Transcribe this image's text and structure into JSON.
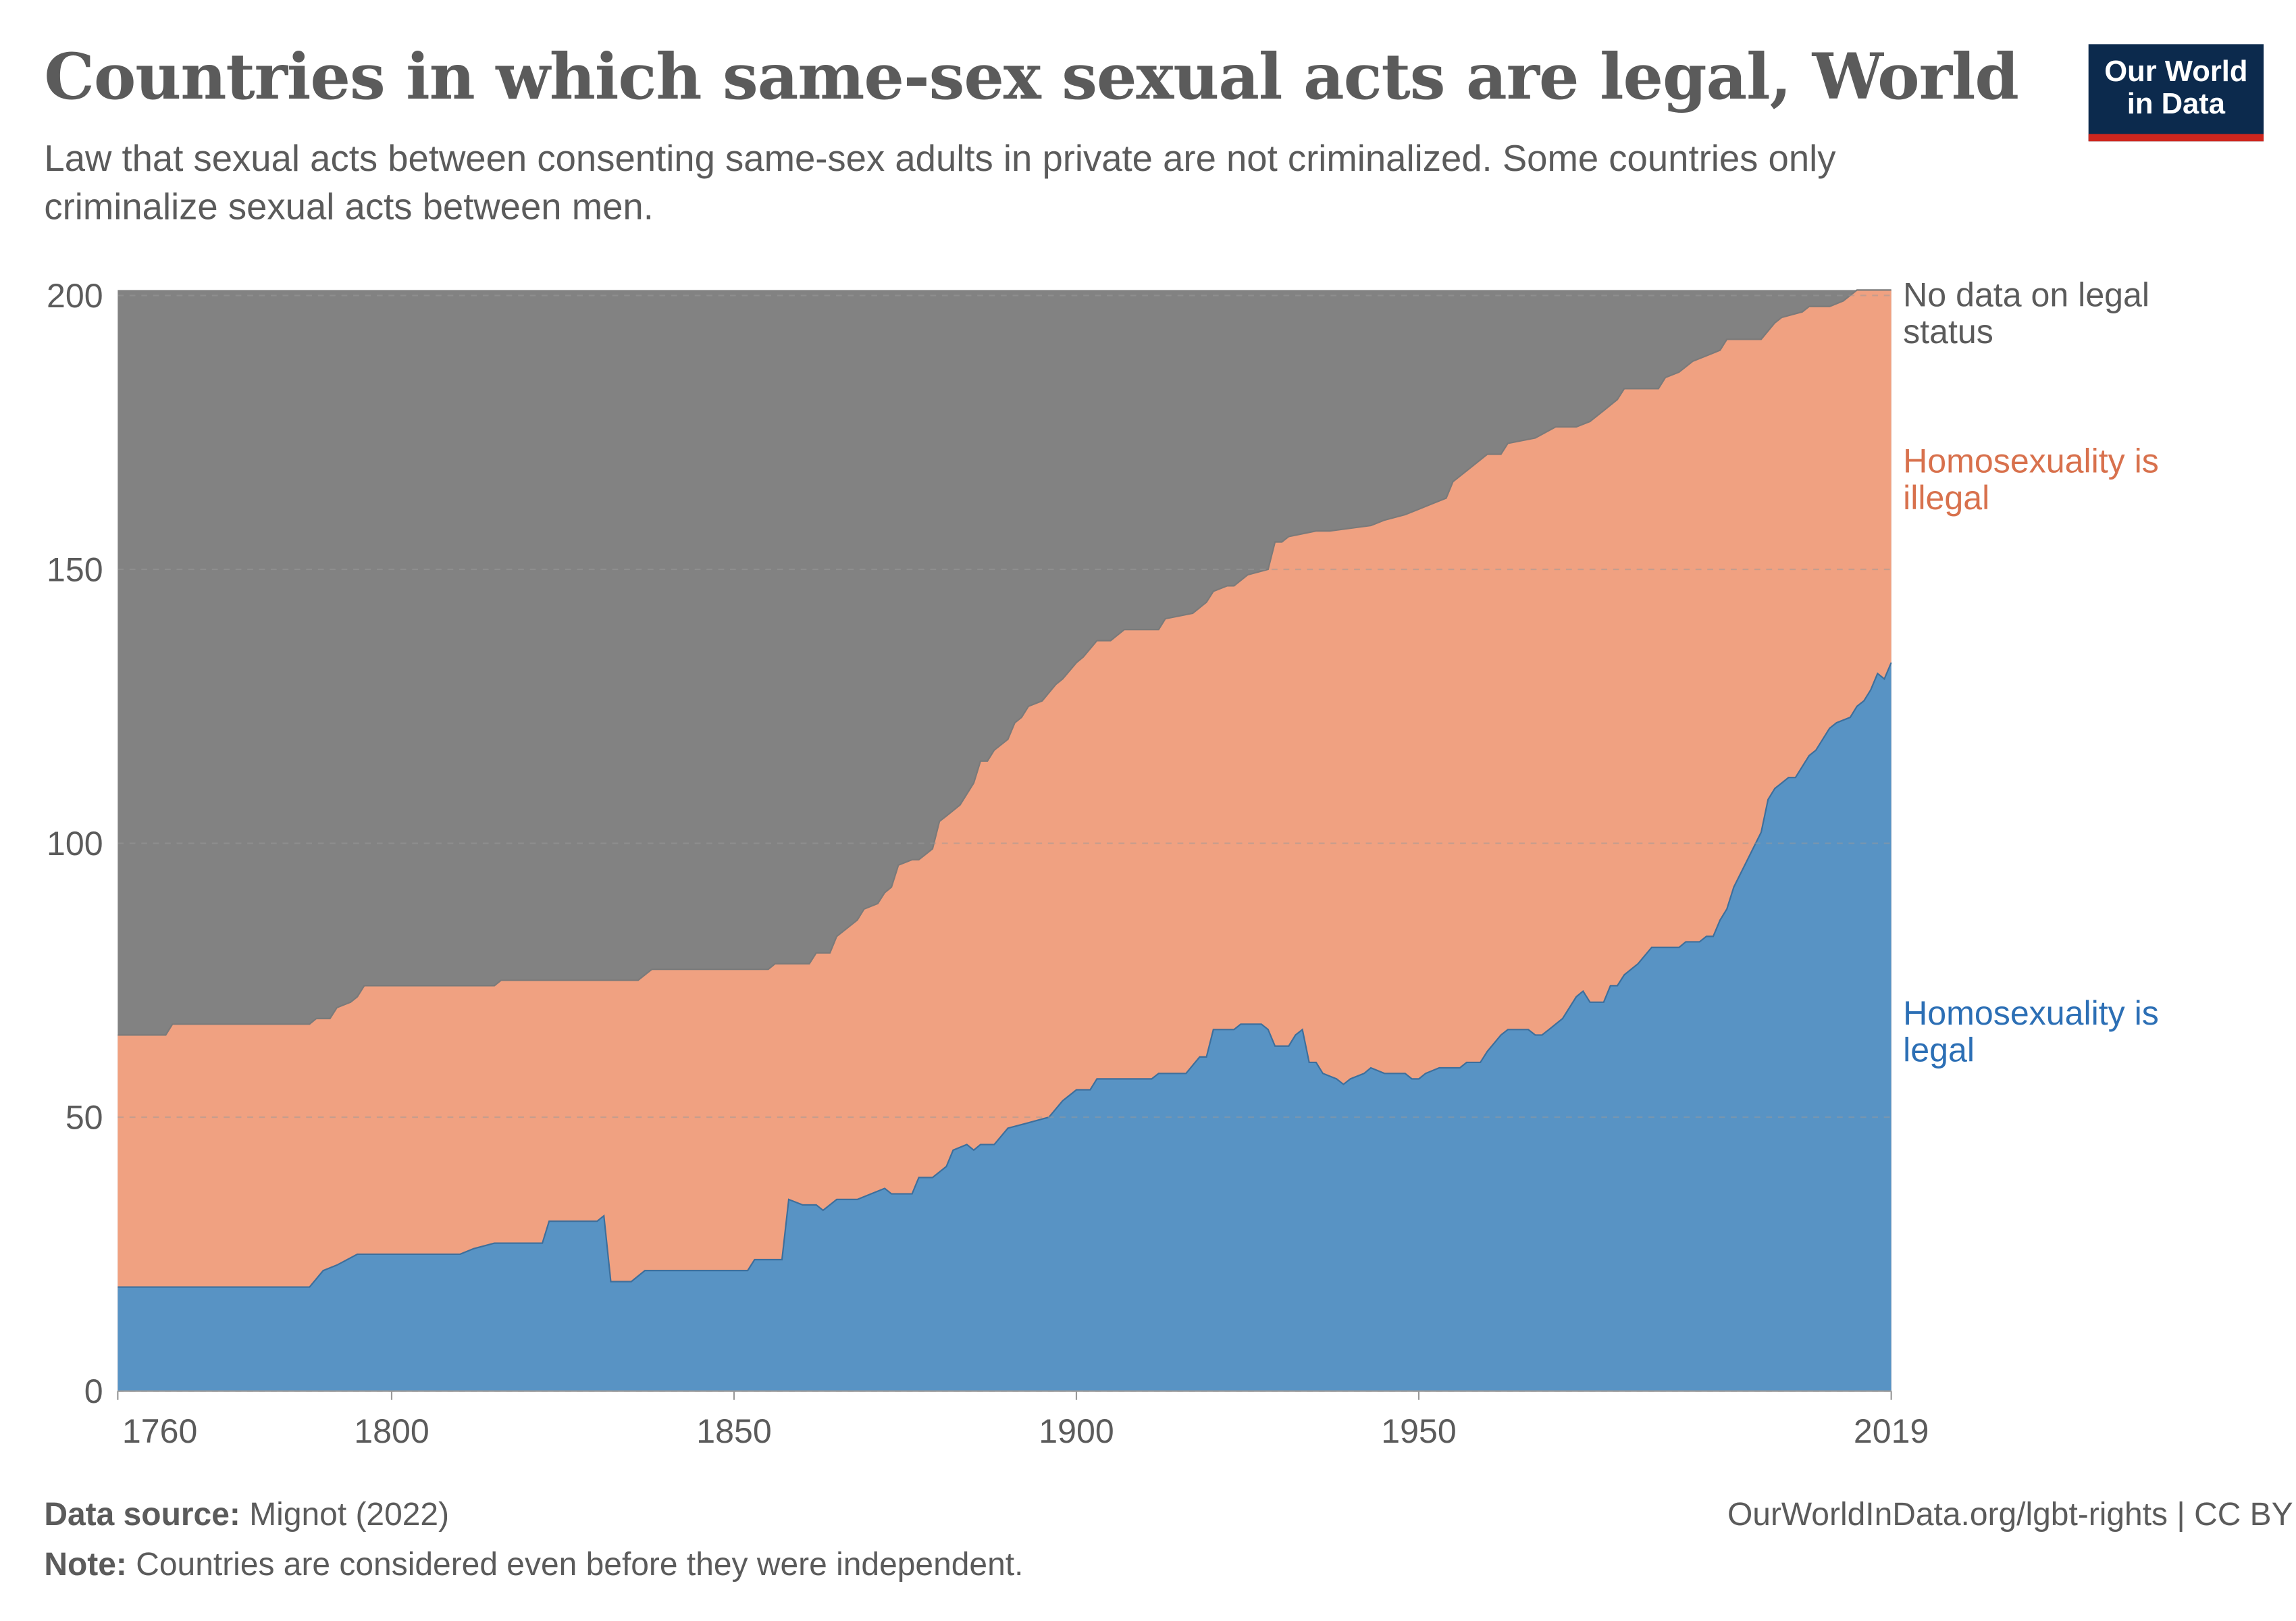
{
  "header": {
    "title": "Countries in which same-sex sexual acts are legal, World",
    "subtitle": "Law that sexual acts between consenting same-sex adults in private are not criminalized. Some countries only criminalize sexual acts between men.",
    "logo_text": "Our World in Data"
  },
  "footer": {
    "source_label": "Data source:",
    "source": "Mignot (2022)",
    "note_label": "Note:",
    "note": "Countries are considered even before they were independent.",
    "url": "OurWorldInData.org/lgbt-rights | CC BY"
  },
  "chart_data": {
    "type": "area",
    "stacked": true,
    "title": "Countries in which same-sex sexual acts are legal, World",
    "xlabel": "",
    "ylabel": "",
    "xlim": [
      1760,
      2019
    ],
    "ylim": [
      0,
      201
    ],
    "x_ticks": [
      "1760",
      "1800",
      "1850",
      "1900",
      "1950",
      "2019"
    ],
    "y_ticks": [
      "0",
      "50",
      "100",
      "150",
      "200"
    ],
    "grid": "horizontal dashed",
    "legend": "right, inline labels",
    "colors": {
      "legal": "#5893c4",
      "illegal": "#f0a181",
      "nodata": "#828282",
      "legal_label": "#2c6fb5",
      "illegal_label": "#d8714d",
      "nodata_label": "#5b5b5b"
    },
    "series_labels": {
      "legal": "Homosexuality is legal",
      "illegal": "Homosexuality is illegal",
      "nodata": "No data on legal status"
    },
    "legal": [
      [
        1760,
        19
      ],
      [
        1788,
        19
      ],
      [
        1790,
        22
      ],
      [
        1792,
        23
      ],
      [
        1795,
        25
      ],
      [
        1810,
        25
      ],
      [
        1812,
        26
      ],
      [
        1815,
        27
      ],
      [
        1822,
        27
      ],
      [
        1823,
        31
      ],
      [
        1830,
        31
      ],
      [
        1831,
        32
      ],
      [
        1832,
        20
      ],
      [
        1835,
        20
      ],
      [
        1837,
        22
      ],
      [
        1852,
        22
      ],
      [
        1853,
        24
      ],
      [
        1857,
        24
      ],
      [
        1858,
        35
      ],
      [
        1860,
        34
      ],
      [
        1862,
        34
      ],
      [
        1863,
        33
      ],
      [
        1865,
        35
      ],
      [
        1868,
        35
      ],
      [
        1870,
        36
      ],
      [
        1872,
        37
      ],
      [
        1873,
        36
      ],
      [
        1876,
        36
      ],
      [
        1877,
        39
      ],
      [
        1879,
        39
      ],
      [
        1881,
        41
      ],
      [
        1882,
        44
      ],
      [
        1884,
        45
      ],
      [
        1885,
        44
      ],
      [
        1886,
        45
      ],
      [
        1888,
        45
      ],
      [
        1890,
        48
      ],
      [
        1893,
        49
      ],
      [
        1896,
        50
      ],
      [
        1898,
        53
      ],
      [
        1900,
        55
      ],
      [
        1902,
        55
      ],
      [
        1903,
        57
      ],
      [
        1911,
        57
      ],
      [
        1912,
        58
      ],
      [
        1916,
        58
      ],
      [
        1918,
        61
      ],
      [
        1919,
        61
      ],
      [
        1920,
        66
      ],
      [
        1923,
        66
      ],
      [
        1924,
        67
      ],
      [
        1927,
        67
      ],
      [
        1928,
        66
      ],
      [
        1929,
        63
      ],
      [
        1931,
        63
      ],
      [
        1932,
        65
      ],
      [
        1933,
        66
      ],
      [
        1934,
        60
      ],
      [
        1935,
        60
      ],
      [
        1936,
        58
      ],
      [
        1938,
        57
      ],
      [
        1939,
        56
      ],
      [
        1940,
        57
      ],
      [
        1942,
        58
      ],
      [
        1943,
        59
      ],
      [
        1945,
        58
      ],
      [
        1948,
        58
      ],
      [
        1949,
        57
      ],
      [
        1950,
        57
      ],
      [
        1951,
        58
      ],
      [
        1953,
        59
      ],
      [
        1956,
        59
      ],
      [
        1957,
        60
      ],
      [
        1959,
        60
      ],
      [
        1960,
        62
      ],
      [
        1962,
        65
      ],
      [
        1963,
        66
      ],
      [
        1966,
        66
      ],
      [
        1967,
        65
      ],
      [
        1968,
        65
      ],
      [
        1969,
        66
      ],
      [
        1971,
        68
      ],
      [
        1973,
        72
      ],
      [
        1974,
        73
      ],
      [
        1975,
        71
      ],
      [
        1977,
        71
      ],
      [
        1978,
        74
      ],
      [
        1979,
        74
      ],
      [
        1980,
        76
      ],
      [
        1982,
        78
      ],
      [
        1984,
        81
      ],
      [
        1988,
        81
      ],
      [
        1989,
        82
      ],
      [
        1991,
        82
      ],
      [
        1992,
        83
      ],
      [
        1993,
        83
      ],
      [
        1994,
        86
      ],
      [
        1995,
        88
      ],
      [
        1996,
        92
      ],
      [
        1998,
        97
      ],
      [
        2000,
        102
      ],
      [
        2001,
        108
      ],
      [
        2002,
        110
      ],
      [
        2003,
        111
      ],
      [
        2004,
        112
      ],
      [
        2005,
        112
      ],
      [
        2006,
        114
      ],
      [
        2007,
        116
      ],
      [
        2008,
        117
      ],
      [
        2010,
        121
      ],
      [
        2011,
        122
      ],
      [
        2013,
        123
      ],
      [
        2014,
        125
      ],
      [
        2015,
        126
      ],
      [
        2016,
        128
      ],
      [
        2017,
        131
      ],
      [
        2018,
        130
      ],
      [
        2019,
        133
      ]
    ],
    "legal_plus_illegal": [
      [
        1760,
        65
      ],
      [
        1767,
        65
      ],
      [
        1768,
        67
      ],
      [
        1788,
        67
      ],
      [
        1789,
        68
      ],
      [
        1791,
        68
      ],
      [
        1792,
        70
      ],
      [
        1794,
        71
      ],
      [
        1795,
        72
      ],
      [
        1796,
        74
      ],
      [
        1815,
        74
      ],
      [
        1816,
        75
      ],
      [
        1836,
        75
      ],
      [
        1837,
        76
      ],
      [
        1838,
        77
      ],
      [
        1855,
        77
      ],
      [
        1856,
        78
      ],
      [
        1861,
        78
      ],
      [
        1862,
        80
      ],
      [
        1864,
        80
      ],
      [
        1865,
        83
      ],
      [
        1866,
        84
      ],
      [
        1868,
        86
      ],
      [
        1869,
        88
      ],
      [
        1871,
        89
      ],
      [
        1872,
        91
      ],
      [
        1873,
        92
      ],
      [
        1874,
        96
      ],
      [
        1876,
        97
      ],
      [
        1877,
        97
      ],
      [
        1879,
        99
      ],
      [
        1880,
        104
      ],
      [
        1881,
        105
      ],
      [
        1883,
        107
      ],
      [
        1885,
        111
      ],
      [
        1886,
        115
      ],
      [
        1887,
        115
      ],
      [
        1888,
        117
      ],
      [
        1890,
        119
      ],
      [
        1891,
        122
      ],
      [
        1892,
        123
      ],
      [
        1893,
        125
      ],
      [
        1895,
        126
      ],
      [
        1897,
        129
      ],
      [
        1898,
        130
      ],
      [
        1900,
        133
      ],
      [
        1901,
        134
      ],
      [
        1903,
        137
      ],
      [
        1905,
        137
      ],
      [
        1907,
        139
      ],
      [
        1912,
        139
      ],
      [
        1913,
        141
      ],
      [
        1917,
        142
      ],
      [
        1919,
        144
      ],
      [
        1920,
        146
      ],
      [
        1922,
        147
      ],
      [
        1923,
        147
      ],
      [
        1925,
        149
      ],
      [
        1928,
        150
      ],
      [
        1929,
        155
      ],
      [
        1930,
        155
      ],
      [
        1931,
        156
      ],
      [
        1935,
        157
      ],
      [
        1937,
        157
      ],
      [
        1943,
        158
      ],
      [
        1945,
        159
      ],
      [
        1948,
        160
      ],
      [
        1950,
        161
      ],
      [
        1952,
        162
      ],
      [
        1954,
        163
      ],
      [
        1955,
        166
      ],
      [
        1957,
        168
      ],
      [
        1960,
        171
      ],
      [
        1962,
        171
      ],
      [
        1963,
        173
      ],
      [
        1967,
        174
      ],
      [
        1970,
        176
      ],
      [
        1973,
        176
      ],
      [
        1975,
        177
      ],
      [
        1977,
        179
      ],
      [
        1979,
        181
      ],
      [
        1980,
        183
      ],
      [
        1985,
        183
      ],
      [
        1986,
        185
      ],
      [
        1988,
        186
      ],
      [
        1990,
        188
      ],
      [
        1992,
        189
      ],
      [
        1994,
        190
      ],
      [
        1995,
        192
      ],
      [
        2000,
        192
      ],
      [
        2002,
        195
      ],
      [
        2003,
        196
      ],
      [
        2006,
        197
      ],
      [
        2007,
        198
      ],
      [
        2010,
        198
      ],
      [
        2012,
        199
      ],
      [
        2014,
        201
      ],
      [
        2019,
        201
      ]
    ],
    "total": 201
  }
}
